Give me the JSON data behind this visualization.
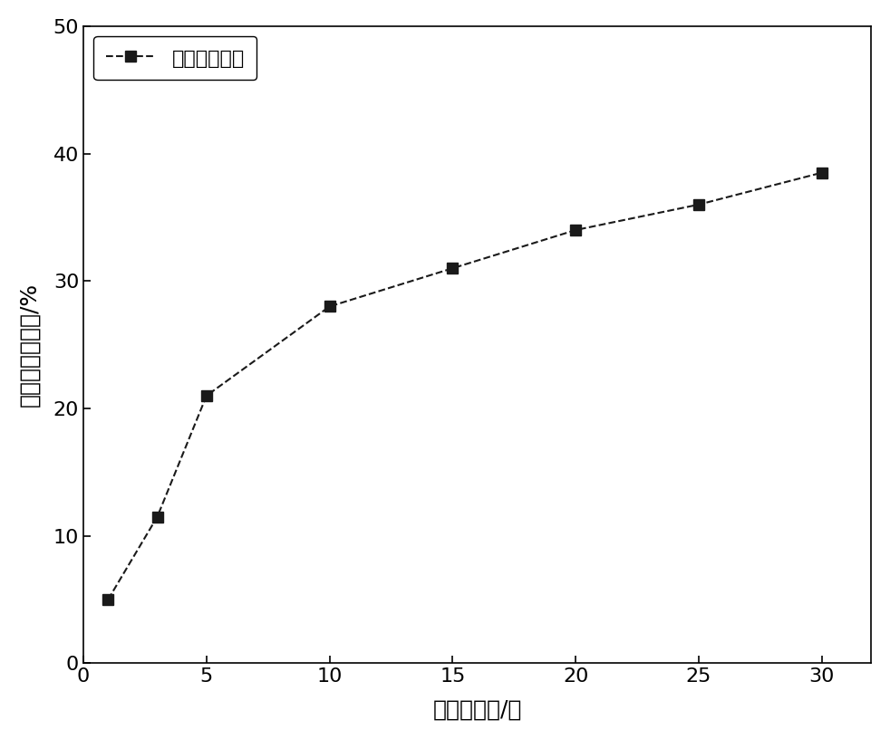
{
  "x": [
    1,
    3,
    5,
    10,
    15,
    20,
    25,
    30
  ],
  "y": [
    5.0,
    11.5,
    21.0,
    28.0,
    31.0,
    34.0,
    36.0,
    38.5
  ],
  "xlabel": "释放的时间/天",
  "ylabel": "阻垒剂释放的量/%",
  "legend_label": "阻垒剂释放量",
  "xlim": [
    0,
    32
  ],
  "ylim": [
    0,
    50
  ],
  "xticks": [
    0,
    5,
    10,
    15,
    20,
    25,
    30
  ],
  "yticks": [
    0,
    10,
    20,
    30,
    40,
    50
  ],
  "line_color": "#1a1a1a",
  "marker": "s",
  "marker_color": "#1a1a1a",
  "marker_size": 8,
  "line_style": "--",
  "line_width": 1.5,
  "font_size_label": 18,
  "font_size_tick": 16,
  "font_size_legend": 16,
  "background_color": "#ffffff"
}
